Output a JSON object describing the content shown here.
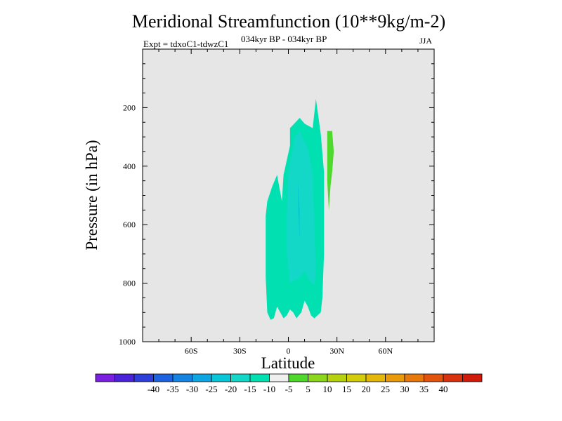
{
  "chart_data": {
    "type": "contour",
    "title": "Meridional Streamfunction (10**9kg/m-2)",
    "expt_label": "Expt = tdxoC1-tdwzC1",
    "period_label": "034kyr BP - 034kyr BP",
    "season_label": "JJA",
    "xlabel": "Latitude",
    "ylabel": "Pressure (in hPa)",
    "xlim": [
      -90,
      90
    ],
    "ylim": [
      1000,
      0
    ],
    "x_ticks": [
      {
        "value": -60,
        "label": "60S"
      },
      {
        "value": -30,
        "label": "30S"
      },
      {
        "value": 0,
        "label": "0"
      },
      {
        "value": 30,
        "label": "30N"
      },
      {
        "value": 60,
        "label": "60N"
      }
    ],
    "y_ticks": [
      {
        "value": 200,
        "label": "200"
      },
      {
        "value": 400,
        "label": "400"
      },
      {
        "value": 600,
        "label": "600"
      },
      {
        "value": 800,
        "label": "800"
      },
      {
        "value": 1000,
        "label": "1000"
      }
    ],
    "background_color": "#e6e6e6",
    "colorbar": {
      "colors": [
        "#7a1ee0",
        "#4a22d8",
        "#2e3ed8",
        "#1d63e0",
        "#1583e2",
        "#0ea6e2",
        "#06c6d8",
        "#13d8c8",
        "#00e0b0",
        "#efefef",
        "#4fd92c",
        "#8cd61e",
        "#b6d20e",
        "#d2cc0a",
        "#e4b80a",
        "#e89a0a",
        "#e6780c",
        "#e2540e",
        "#d8320e",
        "#d01a0a"
      ],
      "labels": [
        "-40",
        "-35",
        "-30",
        "-25",
        "-20",
        "-15",
        "-10",
        "-5",
        "5",
        "10",
        "15",
        "20",
        "25",
        "30",
        "35",
        "40"
      ]
    },
    "regions": [
      {
        "name": "contour-region--5-to--10",
        "fill": "#00e0b0",
        "points": [
          [
            -14,
            570
          ],
          [
            -13,
            520
          ],
          [
            -10,
            470
          ],
          [
            -7,
            430
          ],
          [
            -4,
            520
          ],
          [
            -3,
            430
          ],
          [
            1,
            330
          ],
          [
            1,
            270
          ],
          [
            7,
            235
          ],
          [
            10,
            255
          ],
          [
            15,
            270
          ],
          [
            17,
            170
          ],
          [
            20,
            290
          ],
          [
            22,
            420
          ],
          [
            22,
            700
          ],
          [
            21,
            850
          ],
          [
            20,
            900
          ],
          [
            16,
            920
          ],
          [
            14,
            910
          ],
          [
            12,
            880
          ],
          [
            10,
            860
          ],
          [
            8,
            900
          ],
          [
            5,
            920
          ],
          [
            3,
            900
          ],
          [
            1,
            890
          ],
          [
            -1,
            910
          ],
          [
            -3,
            920
          ],
          [
            -5,
            900
          ],
          [
            -7,
            880
          ],
          [
            -9,
            920
          ],
          [
            -11,
            925
          ],
          [
            -13,
            900
          ],
          [
            -14,
            780
          ]
        ]
      },
      {
        "name": "contour-region--10-to--15",
        "fill": "#13d8c8",
        "points": [
          [
            -1,
            560
          ],
          [
            0,
            420
          ],
          [
            4,
            300
          ],
          [
            7,
            280
          ],
          [
            12,
            340
          ],
          [
            15,
            420
          ],
          [
            16,
            600
          ],
          [
            17,
            760
          ],
          [
            16,
            810
          ],
          [
            13,
            790
          ],
          [
            10,
            760
          ],
          [
            7,
            780
          ],
          [
            4,
            790
          ],
          [
            1,
            800
          ],
          [
            -1,
            700
          ]
        ]
      },
      {
        "name": "contour-region--15-to--20",
        "fill": "#06c6d8",
        "points": [
          [
            6,
            450
          ],
          [
            7,
            550
          ],
          [
            7,
            650
          ],
          [
            6,
            550
          ]
        ]
      },
      {
        "name": "contour-region-5-to-10",
        "fill": "#4fd92c",
        "points": [
          [
            24,
            280
          ],
          [
            27,
            280
          ],
          [
            28,
            350
          ],
          [
            27,
            420
          ],
          [
            26,
            470
          ],
          [
            25,
            550
          ],
          [
            24,
            450
          ],
          [
            24,
            350
          ]
        ]
      }
    ]
  }
}
